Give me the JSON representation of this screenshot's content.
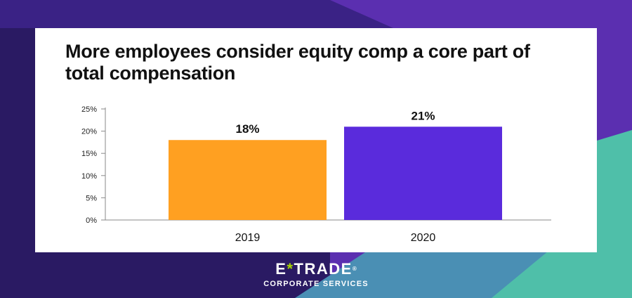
{
  "colors": {
    "background_dark": "#2a1a63",
    "background_purple": "#5b2fb0",
    "background_teal": "#4fbfa9",
    "bar_2019": "#ffa021",
    "bar_2020": "#5a2bdc",
    "text": "#111111"
  },
  "chart_data": {
    "type": "bar",
    "title": "More employees consider equity comp a core part of total compensation",
    "categories": [
      "2019",
      "2020"
    ],
    "values": [
      18,
      21
    ],
    "value_labels": [
      "18%",
      "21%"
    ],
    "y_ticks": [
      "0%",
      "5%",
      "10%",
      "15%",
      "20%",
      "25%"
    ],
    "ylim": [
      0,
      25
    ],
    "xlabel": "",
    "ylabel": "",
    "grid": false,
    "legend": "none"
  },
  "branding": {
    "brand_left": "E",
    "brand_mark": "*",
    "brand_right": "TRADE",
    "trademark": "®",
    "tagline": "CORPORATE SERVICES"
  }
}
